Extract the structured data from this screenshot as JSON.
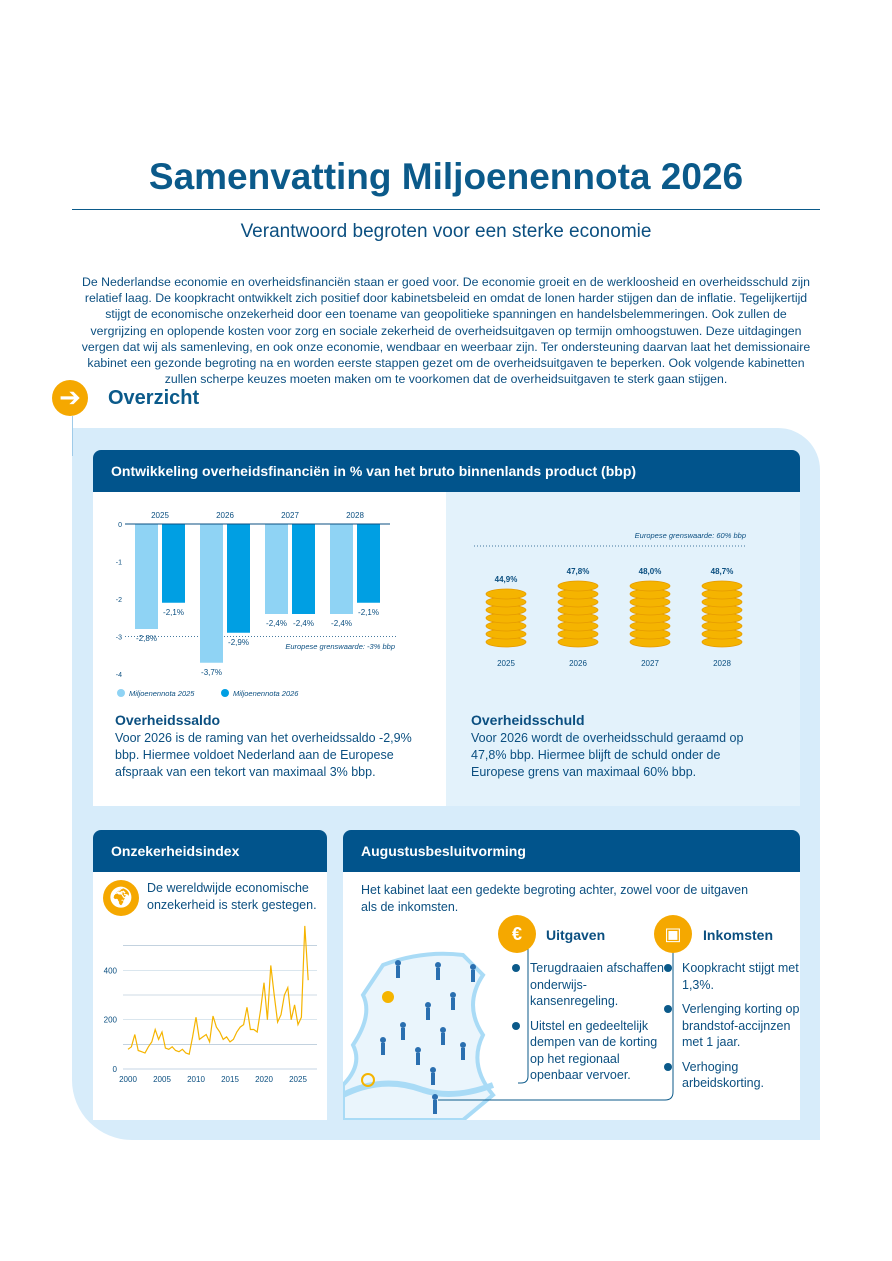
{
  "title": "Samenvatting Miljoenennota 2026",
  "subtitle": "Verantwoord begroten voor een sterke economie",
  "intro": "De Nederlandse economie en overheidsfinanciën staan er goed voor. De economie groeit en de werkloosheid en overheidsschuld zijn relatief laag. De koopkracht ontwikkelt zich positief door kabinetsbeleid en omdat de lonen harder stijgen dan de inflatie. Tegelijkertijd stijgt de economische onzekerheid door een toename van geopolitieke spanningen en handelsbelemmeringen. Ook zullen de vergrijzing en oplopende kosten voor zorg en sociale zekerheid de overheidsuitgaven op termijn omhoogstuwen. Deze uitdagingen vergen dat wij als samenleving, en ook onze economie, wendbaar en weerbaar zijn. Ter ondersteuning daarvan laat het demissionaire kabinet een gezonde begroting na en worden eerste stappen gezet om de overheidsuitgaven te beperken. Ook volgende kabinetten zullen scherpe keuzes moeten maken om te voorkomen dat de overheidsuitgaven te sterk gaan stijgen.",
  "overview": {
    "icon": "arrow-right-icon",
    "label": "Overzicht"
  },
  "finance_card": {
    "header": "Ontwikkeling overheidsfinanciën in % van het bruto binnenlands product (bbp)",
    "saldo_title": "Overheidssaldo",
    "saldo_text": "Voor 2026 is de raming van het overheidssaldo -2,9% bbp. Hiermee voldoet Nederland aan de Europese afspraak van een tekort van maximaal 3% bbp.",
    "schuld_title": "Overheidsschuld",
    "schuld_text": "Voor 2026 wordt de overheidsschuld geraamd op 47,8% bbp. Hiermee blijft de schuld onder de Europese grens van maximaal 60% bbp."
  },
  "uncertainty_card": {
    "header": "Onzekerheidsindex",
    "icon": "globe-icon",
    "text": "De wereldwijde economische onzekerheid is sterk gestegen."
  },
  "august_card": {
    "header": "Augustusbesluitvorming",
    "intro": "Het kabinet laat een gedekte begroting achter, zowel voor de uitgaven als de inkomsten.",
    "uitgaven": {
      "title": "Uitgaven",
      "icon": "money-bag-euro-icon",
      "items": [
        "Terugdraaien afschaffen onderwijs-kansenregeling.",
        "Uitstel en gedeeltelijk dempen van de korting op het regionaal openbaar vervoer."
      ]
    },
    "inkomsten": {
      "title": "Inkomsten",
      "icon": "treasure-chest-coin-icon",
      "items": [
        "Koopkracht stijgt met 1,3%.",
        "Verlenging korting op brandstof-accijnzen met 1 jaar.",
        "Verhoging arbeidskorting."
      ]
    }
  },
  "colors": {
    "dark_blue": "#01548c",
    "light_bar": "#8fd3f4",
    "dark_bar": "#009fe3",
    "gold": "#f5a800",
    "panel": "#d7ecfa"
  },
  "chart_data": [
    {
      "type": "bar",
      "title": "Overheidssaldo",
      "categories": [
        "2025",
        "2026",
        "2027",
        "2028"
      ],
      "series": [
        {
          "name": "Miljoenennota 2025",
          "values": [
            -2.8,
            -3.7,
            -2.4,
            -2.4
          ],
          "labels": [
            "-2,8%",
            "-3,7%",
            "-2,4%",
            "-2,4%"
          ]
        },
        {
          "name": "Miljoenennota 2026",
          "values": [
            -2.1,
            -2.9,
            -2.4,
            -2.1
          ],
          "labels": [
            "-2,1%",
            "-2,9%",
            "-2,4%",
            "-2,1%"
          ]
        }
      ],
      "yticks": [
        "0",
        "-1",
        "-2",
        "-3",
        "-4"
      ],
      "ylim": [
        -4,
        0
      ],
      "reference": {
        "value": -3,
        "label": "Europese grenswaarde: -3% bbp"
      },
      "legend": "bottom-left"
    },
    {
      "type": "bar",
      "title": "Overheidsschuld",
      "categories": [
        "2025",
        "2026",
        "2027",
        "2028"
      ],
      "values": [
        44.9,
        47.8,
        48.0,
        48.7
      ],
      "labels": [
        "44,9%",
        "47,8%",
        "48,0%",
        "48,7%"
      ],
      "reference": {
        "value": 60,
        "label": "Europese grenswaarde: 60% bbp"
      }
    },
    {
      "type": "line",
      "title": "Onzekerheidsindex",
      "x_start": 2000,
      "x_step": 0.5,
      "values": [
        80,
        90,
        140,
        75,
        70,
        65,
        90,
        110,
        160,
        120,
        150,
        85,
        80,
        90,
        75,
        70,
        80,
        65,
        60,
        130,
        210,
        120,
        130,
        140,
        110,
        215,
        170,
        150,
        120,
        130,
        110,
        120,
        150,
        170,
        180,
        250,
        160,
        160,
        150,
        240,
        350,
        200,
        420,
        300,
        190,
        220,
        300,
        330,
        200,
        260,
        180,
        210,
        580,
        360
      ],
      "xticks": [
        "2000",
        "2005",
        "2010",
        "2015",
        "2020",
        "2025"
      ],
      "yticks": [
        "0",
        "200",
        "400",
        "600"
      ],
      "ylim": [
        0,
        600
      ]
    }
  ]
}
